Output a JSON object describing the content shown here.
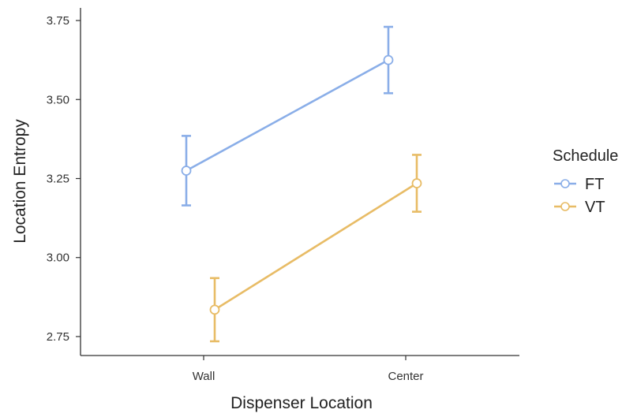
{
  "chart_data": {
    "type": "line",
    "categories": [
      "Wall",
      "Center"
    ],
    "xlabel": "Dispenser Location",
    "ylabel": "Location Entropy",
    "ylim": [
      2.69,
      3.79
    ],
    "yticks": [
      2.75,
      3.0,
      3.25,
      3.5,
      3.75
    ],
    "ytick_labels": [
      "2.75",
      "3.00",
      "3.25",
      "3.50",
      "3.75"
    ],
    "grid": false,
    "legend": {
      "title": "Schedule",
      "placement": "right"
    },
    "series": [
      {
        "name": "FT",
        "color": "#8aaee8",
        "values": [
          3.275,
          3.625
        ],
        "err_low": [
          3.165,
          3.52
        ],
        "err_high": [
          3.385,
          3.73
        ]
      },
      {
        "name": "VT",
        "color": "#e8bc66",
        "values": [
          2.835,
          3.235
        ],
        "err_low": [
          2.735,
          3.145
        ],
        "err_high": [
          2.935,
          3.325
        ]
      }
    ]
  }
}
